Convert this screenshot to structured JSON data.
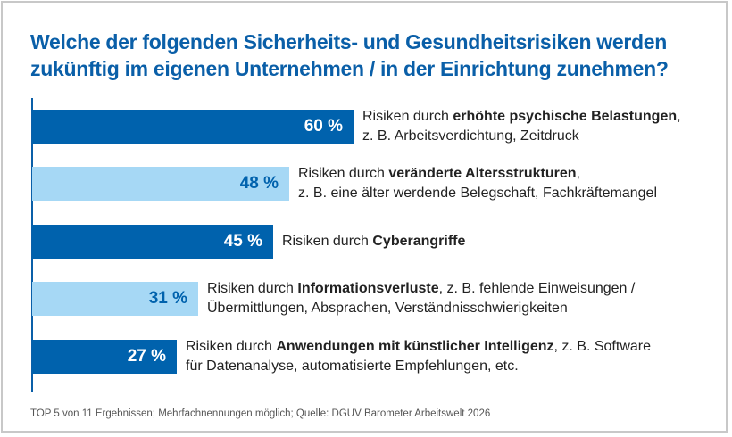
{
  "chart_data": {
    "type": "bar",
    "orientation": "horizontal",
    "title": "Welche der folgenden Sicherheits- und Gesundheitsrisiken werden zukünftig im eigenen Unternehmen / in der Einrichtung zunehmen?",
    "xlim": [
      0,
      100
    ],
    "grid": false,
    "colors": {
      "dark": "#0062ad",
      "light": "#a6d8f5",
      "title": "#0a5fa8"
    },
    "bars": [
      {
        "value": 60,
        "value_label": "60 %",
        "style": "dark",
        "prefix": "Risiken durch ",
        "bold": "erhöhte psychische Belastungen",
        "suffix": ",",
        "line2": "z. B. Arbeitsverdichtung, Zeitdruck"
      },
      {
        "value": 48,
        "value_label": "48 %",
        "style": "light",
        "prefix": "Risiken durch ",
        "bold": "veränderte Altersstrukturen",
        "suffix": ",",
        "line2": "z. B. eine älter werdende Belegschaft, Fachkräftemangel"
      },
      {
        "value": 45,
        "value_label": "45 %",
        "style": "dark",
        "prefix": "Risiken durch ",
        "bold": "Cyberangriffe",
        "suffix": "",
        "line2": ""
      },
      {
        "value": 31,
        "value_label": "31 %",
        "style": "light",
        "prefix": "Risiken durch ",
        "bold": "Informationsverluste",
        "suffix": ", z. B. fehlende Einweisungen /",
        "line2": "Übermittlungen, Absprachen, Verständnisschwierigkeiten"
      },
      {
        "value": 27,
        "value_label": "27 %",
        "style": "dark",
        "prefix": "Risiken durch ",
        "bold": "Anwendungen mit künstlicher Intelligenz",
        "suffix": ", z. B. Software",
        "line2": "für Datenanalyse, automatisierte Empfehlungen, etc."
      }
    ],
    "footnote": "TOP 5 von 11 Ergebnissen; Mehrfachnennungen möglich; Quelle: DGUV Barometer Arbeitswelt 2026"
  }
}
